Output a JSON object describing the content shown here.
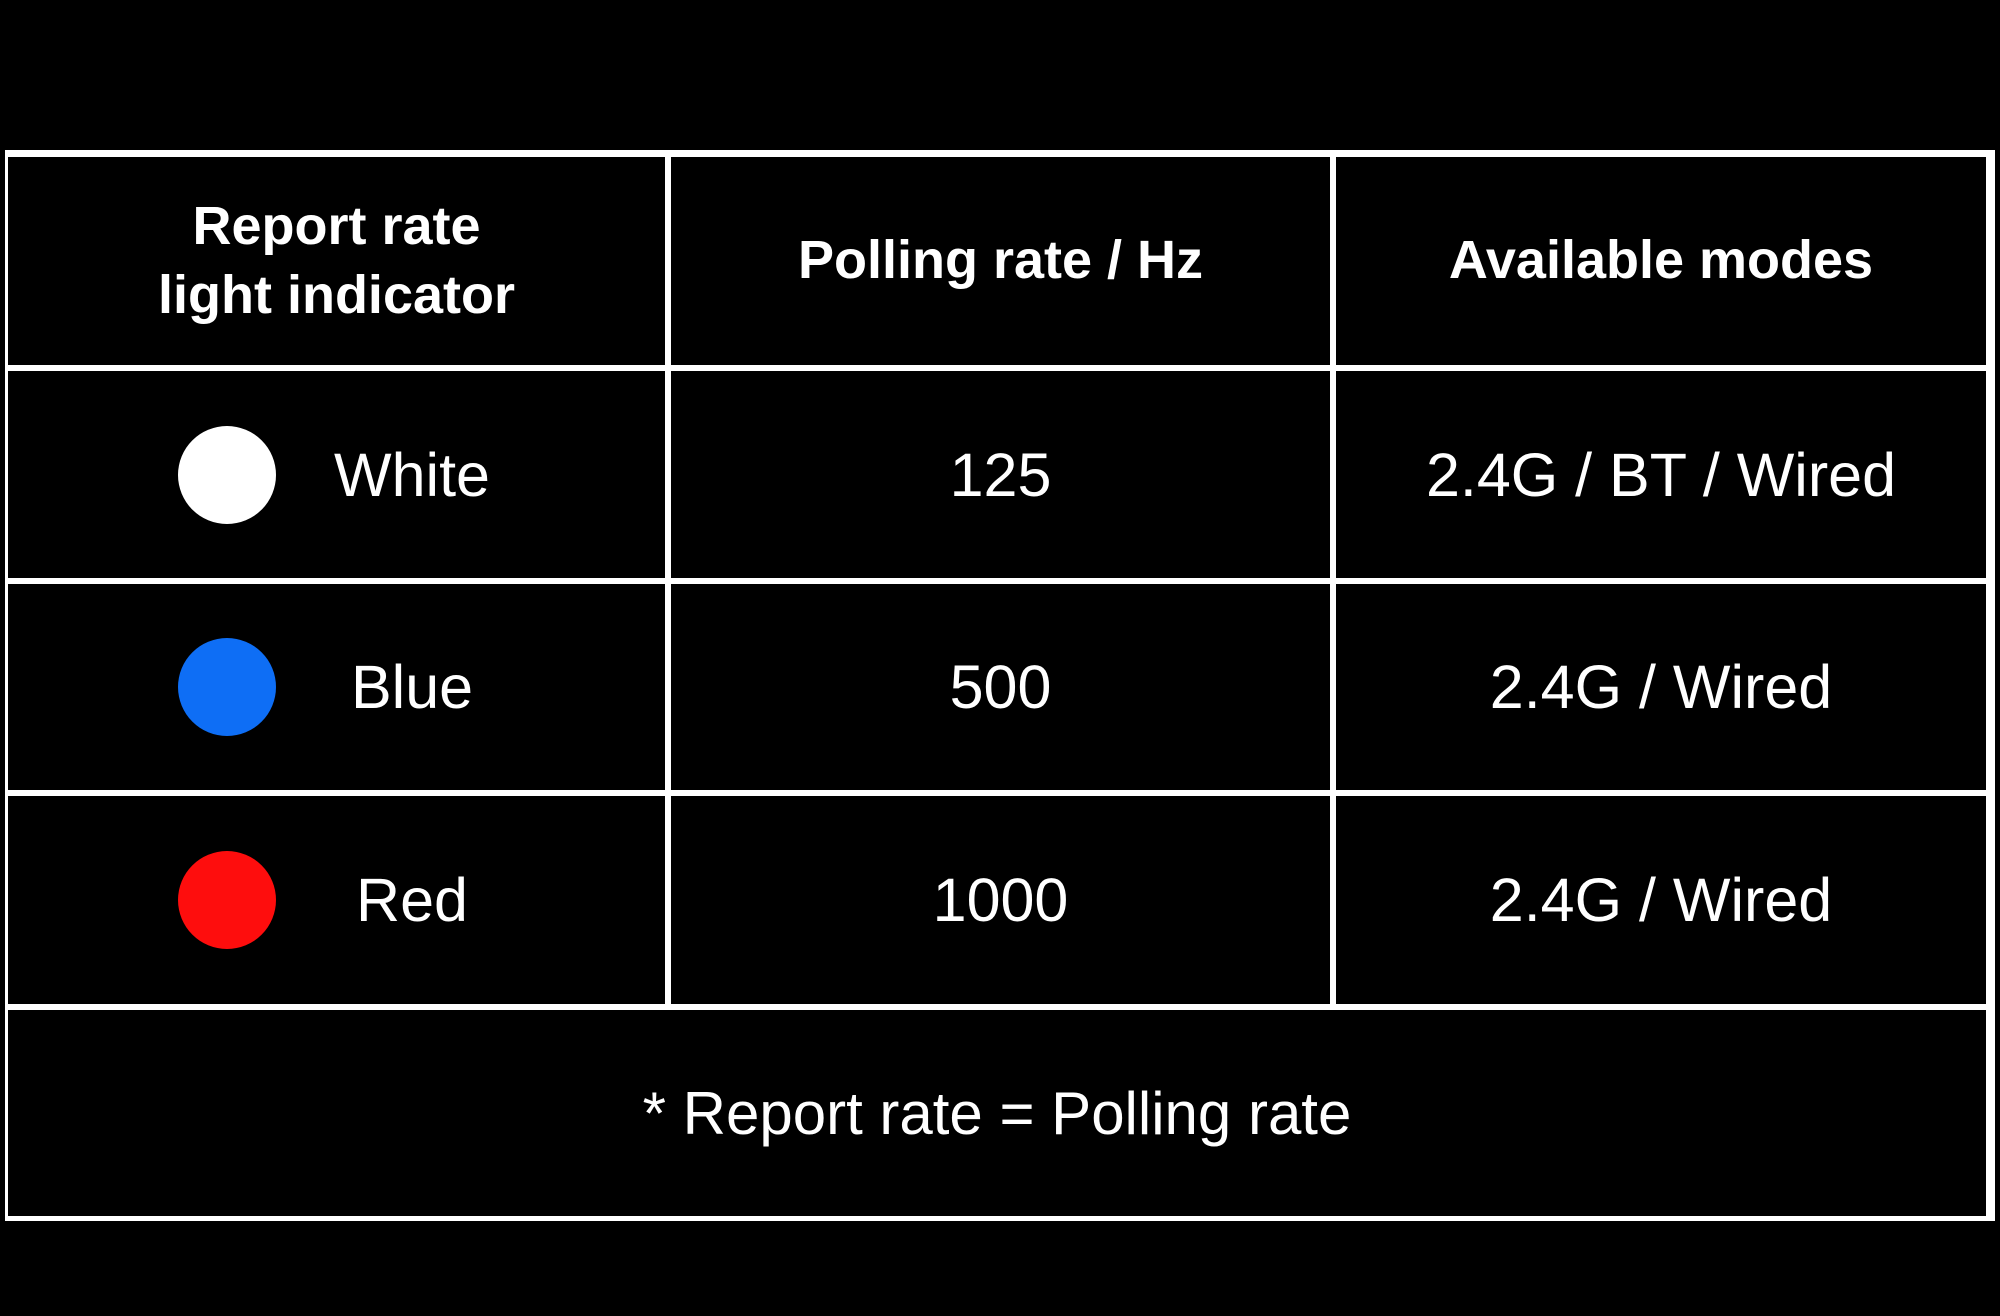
{
  "page": {
    "background_color": "#000000",
    "border_color": "#ffffff",
    "text_color": "#ffffff"
  },
  "chart_data": {
    "type": "table",
    "columns": [
      "Report rate light indicator",
      "Polling rate / Hz",
      "Available modes"
    ],
    "rows": [
      {
        "indicator": "White",
        "indicator_color": "#ffffff",
        "polling_rate_hz": 125,
        "available_modes": "2.4G / BT / Wired"
      },
      {
        "indicator": "Blue",
        "indicator_color": "#0e6ef5",
        "polling_rate_hz": 500,
        "available_modes": "2.4G / Wired"
      },
      {
        "indicator": "Red",
        "indicator_color": "#fe0d0d",
        "polling_rate_hz": 1000,
        "available_modes": "2.4G / Wired"
      }
    ],
    "footnote": "* Report rate = Polling rate",
    "layout": {
      "grid": "white rule lines on black cells",
      "footnote_row_spans_all_columns": true
    }
  },
  "table": {
    "header": {
      "col1": "Report rate\nlight indicator",
      "col2": "Polling rate / Hz",
      "col3": "Available modes"
    },
    "rows": [
      {
        "name": "White",
        "dot_color": "#ffffff",
        "rate": "125",
        "modes": "2.4G / BT / Wired"
      },
      {
        "name": "Blue",
        "dot_color": "#0e6ef5",
        "rate": "500",
        "modes": "2.4G / Wired"
      },
      {
        "name": "Red",
        "dot_color": "#fe0d0d",
        "rate": "1000",
        "modes": "2.4G / Wired"
      }
    ],
    "footnote": "* Report rate = Polling rate"
  }
}
